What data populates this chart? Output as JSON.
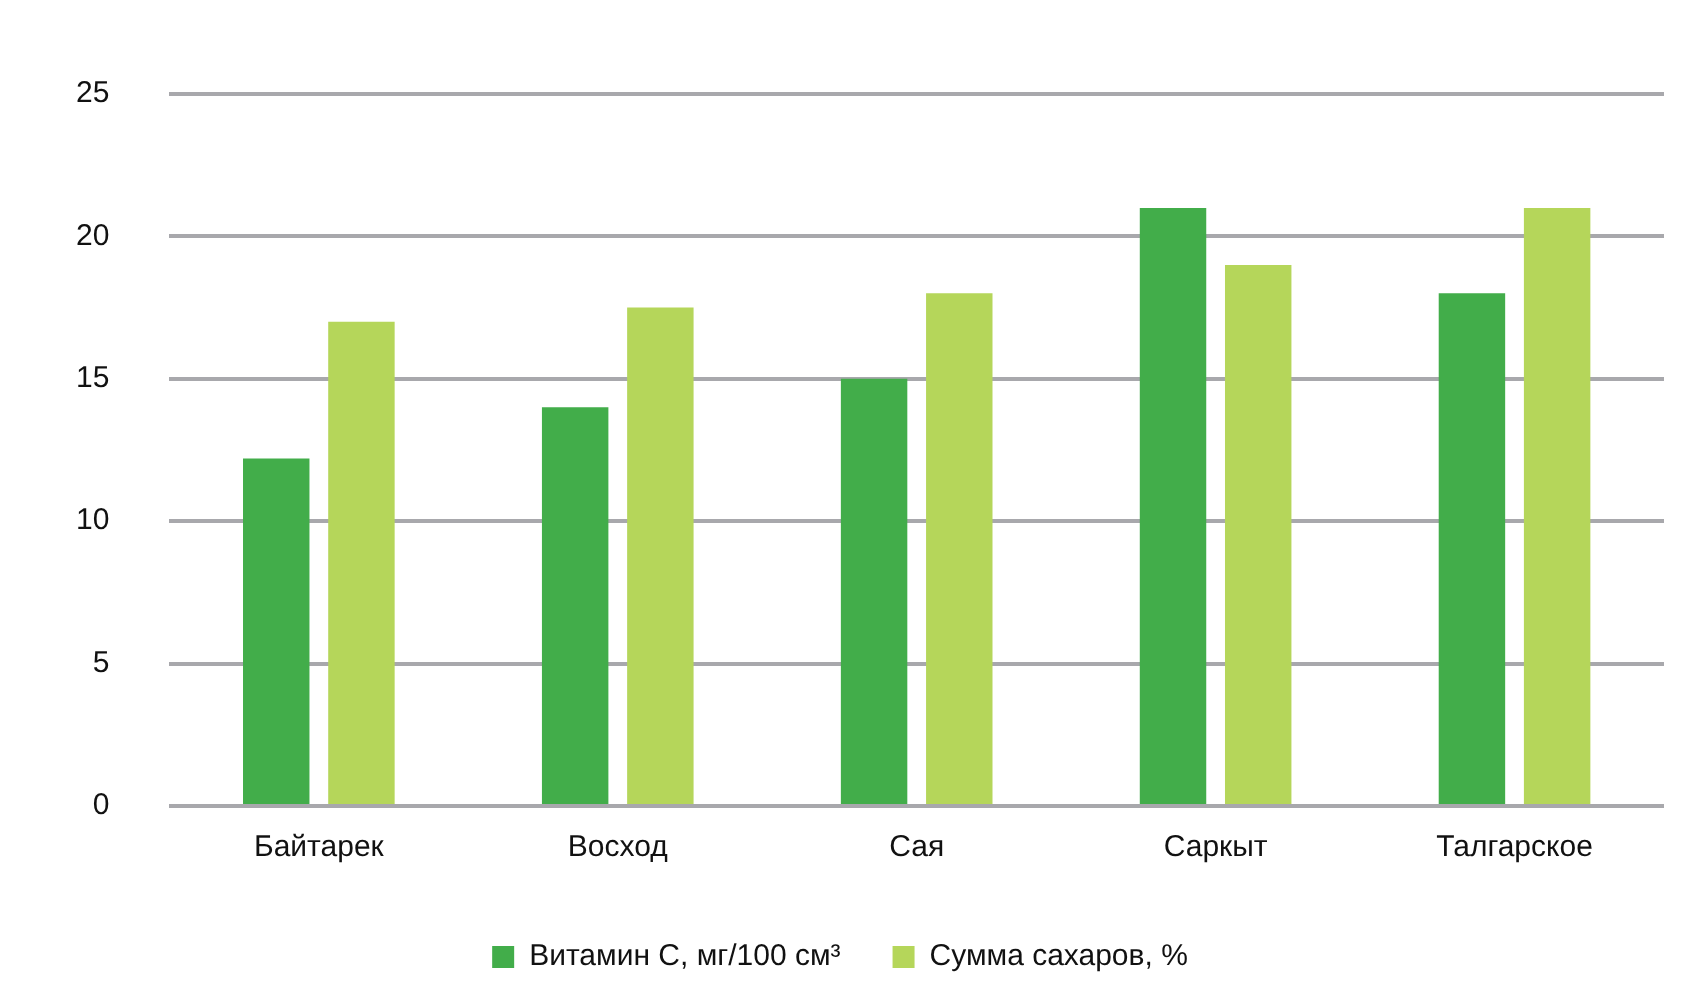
{
  "chart_data": {
    "type": "bar",
    "categories": [
      "Байтарек",
      "Восход",
      "Сая",
      "Саркыт",
      "Талгарское"
    ],
    "series": [
      {
        "name": "Витамин С, мг/100 см³",
        "color": "#42ad4a",
        "values": [
          12.2,
          14,
          15,
          21,
          18
        ]
      },
      {
        "name": "Сумма сахаров, %",
        "color": "#b5d65a",
        "values": [
          17,
          17.5,
          18,
          19,
          21
        ]
      }
    ],
    "ylim": [
      0,
      25
    ],
    "yticks": [
      0,
      5,
      10,
      15,
      20,
      25
    ],
    "grid": "y",
    "legend": "bottom"
  }
}
